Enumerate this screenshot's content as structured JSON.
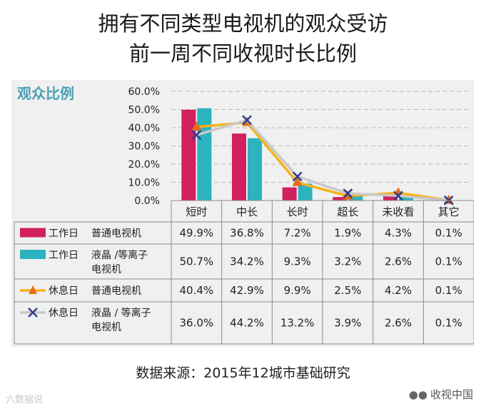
{
  "title_line1": "拥有不同类型电视机的观众受访",
  "title_line2": "前一周不同收视时长比例",
  "source": "数据来源：2015年12城市基础研究",
  "watermark_left": "六数据说",
  "watermark_right": "收视中国",
  "chart_data": {
    "type": "bar",
    "subtype": "bar+line with data table",
    "ylabel": "观众比例",
    "ylim": [
      0,
      60
    ],
    "yticks": [
      "60.0%",
      "50.0%",
      "40.0%",
      "30.0%",
      "20.0%",
      "10.0%",
      "0.0%"
    ],
    "ytick_values": [
      60,
      50,
      40,
      30,
      20,
      10,
      0
    ],
    "categories": [
      "短时",
      "中长",
      "长时",
      "超长",
      "未收看",
      "其它"
    ],
    "grid": true,
    "series": [
      {
        "name_day": "工作日",
        "name_type": "普通电视机",
        "kind": "bar",
        "color": "#d21f5f",
        "values": [
          49.9,
          36.8,
          7.2,
          1.9,
          4.3,
          0.1
        ],
        "labels": [
          "49.9%",
          "36.8%",
          "7.2%",
          "1.9%",
          "4.3%",
          "0.1%"
        ]
      },
      {
        "name_day": "工作日",
        "name_type": "液晶 /等离子电视机",
        "kind": "bar",
        "color": "#2bb3bf",
        "values": [
          50.7,
          34.2,
          9.3,
          3.2,
          2.6,
          0.1
        ],
        "labels": [
          "50.7%",
          "34.2%",
          "9.3%",
          "3.2%",
          "2.6%",
          "0.1%"
        ]
      },
      {
        "name_day": "休息日",
        "name_type": "普通电视机",
        "kind": "line",
        "color": "#f5b21b",
        "marker_color": "#e86a1e",
        "marker": "triangle",
        "values": [
          40.4,
          42.9,
          9.9,
          2.5,
          4.2,
          0.1
        ],
        "labels": [
          "40.4%",
          "42.9%",
          "9.9%",
          "2.5%",
          "4.2%",
          "0.1%"
        ]
      },
      {
        "name_day": "休息日",
        "name_type": "液晶 / 等离子电视机",
        "kind": "line",
        "color": "#c9c9c9",
        "marker_color": "#2d3e8c",
        "marker": "x",
        "values": [
          36.0,
          44.2,
          13.2,
          3.9,
          2.6,
          0.1
        ],
        "labels": [
          "36.0%",
          "44.2%",
          "13.2%",
          "3.9%",
          "2.6%",
          "0.1%"
        ]
      }
    ]
  }
}
